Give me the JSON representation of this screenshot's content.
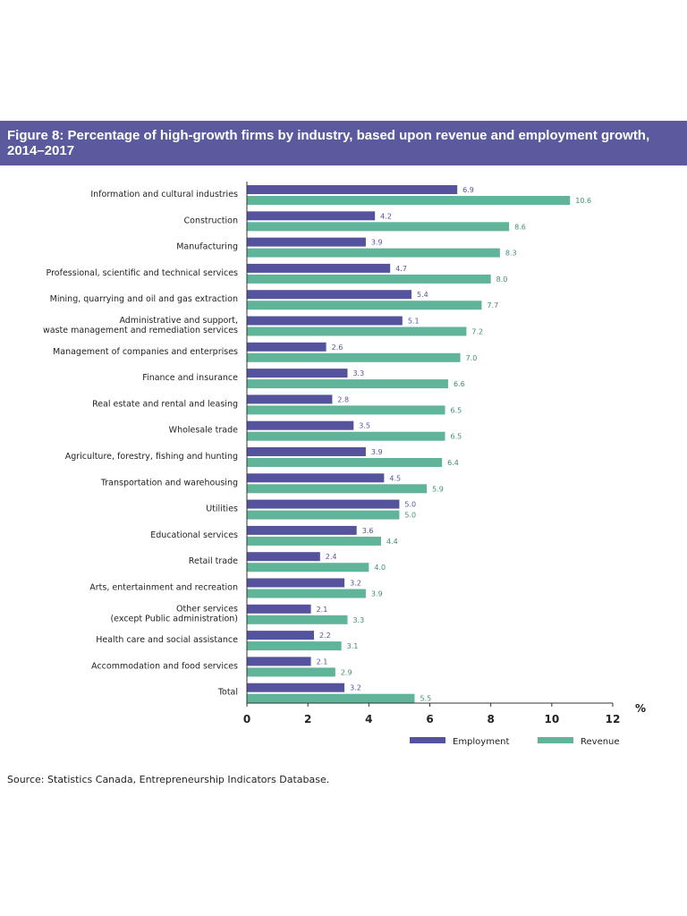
{
  "title": "Figure 8: Percentage of high-growth firms by industry, based upon revenue and employment growth, 2014–2017",
  "source": "Source: Statistics Canada, Entrepreneurship Indicators Database.",
  "colors": {
    "header_bg": "#5b5a9e",
    "employment": "#55539d",
    "revenue": "#5fb49a"
  },
  "chart_data": {
    "type": "bar",
    "orientation": "horizontal",
    "categories": [
      [
        "Information and cultural industries"
      ],
      [
        "Construction"
      ],
      [
        "Manufacturing"
      ],
      [
        "Professional, scientific and technical services"
      ],
      [
        "Mining, quarrying and oil and gas extraction"
      ],
      [
        "Administrative and support,",
        "waste management and remediation services"
      ],
      [
        "Management of companies and enterprises"
      ],
      [
        "Finance and insurance"
      ],
      [
        "Real estate and rental and leasing"
      ],
      [
        "Wholesale trade"
      ],
      [
        "Agriculture, forestry, fishing and hunting"
      ],
      [
        "Transportation and warehousing"
      ],
      [
        "Utilities"
      ],
      [
        "Educational services"
      ],
      [
        "Retail trade"
      ],
      [
        "Arts, entertainment and recreation"
      ],
      [
        "Other services",
        "(except Public administration)"
      ],
      [
        "Health care and social assistance"
      ],
      [
        "Accommodation and food services"
      ],
      [
        "Total"
      ]
    ],
    "series": [
      {
        "name": "Employment",
        "values": [
          "6.9",
          "4.2",
          "3.9",
          "4.7",
          "5.4",
          "5.1",
          "2.6",
          "3.3",
          "2.8",
          "3.5",
          "3.9",
          "4.5",
          "5.0",
          "3.6",
          "2.4",
          "3.2",
          "2.1",
          "2.2",
          "2.1",
          "3.2"
        ]
      },
      {
        "name": "Revenue",
        "values": [
          "10.6",
          "8.6",
          "8.3",
          "8.0",
          "7.7",
          "7.2",
          "7.0",
          "6.6",
          "6.5",
          "6.5",
          "6.4",
          "5.9",
          "5.0",
          "4.4",
          "4.0",
          "3.9",
          "3.3",
          "3.1",
          "2.9",
          "5.5"
        ]
      }
    ],
    "x_ticks": [
      "0",
      "2",
      "4",
      "6",
      "8",
      "10",
      "12"
    ],
    "xlim": [
      0,
      12
    ],
    "x_unit": "%",
    "legend_position": "bottom-right",
    "grid": false
  }
}
